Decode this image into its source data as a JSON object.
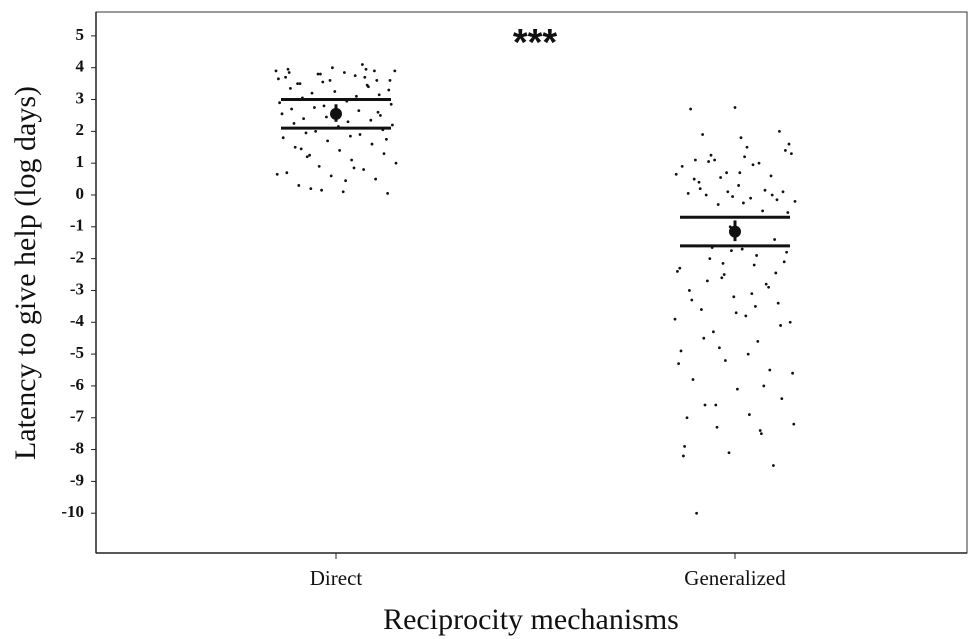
{
  "chart_data": {
    "type": "strip",
    "annotation": "***",
    "xlabel": "Reciprocity mechanisms",
    "ylabel": "Latency to give help (log days)",
    "categories": [
      "Direct",
      "Generalized"
    ],
    "color": "#111111",
    "ylim": [
      -11.25,
      5.75
    ],
    "yticks": [
      -10,
      -9,
      -8,
      -7,
      -6,
      -5,
      -4,
      -3,
      -2,
      -1,
      0,
      1,
      2,
      3,
      4,
      5
    ],
    "points": [
      [
        3.9,
        3.8,
        3.7,
        3.95,
        4.0,
        3.6,
        3.5,
        3.85,
        3.3,
        3.2,
        3.1,
        2.9,
        2.8,
        3.4,
        2.7,
        2.6,
        2.5,
        2.4,
        2.3,
        2.2,
        2.0,
        1.9,
        1.8,
        1.7,
        1.6,
        1.5,
        1.4,
        1.3,
        1.2,
        1.1,
        1.0,
        0.9,
        0.8,
        0.7,
        0.6,
        0.5,
        0.3,
        0.1,
        0.05,
        0.2,
        3.75,
        3.65,
        3.55,
        3.45,
        3.35,
        3.25,
        3.15,
        3.05,
        2.95,
        2.85,
        2.75,
        2.65,
        2.55,
        2.45,
        2.35,
        2.25,
        2.15,
        2.05,
        1.95,
        1.85,
        3.9,
        3.8,
        4.1,
        3.7,
        3.6,
        3.9,
        3.5,
        2.1,
        1.75,
        1.25,
        0.85,
        0.65,
        0.15,
        3.95,
        3.85,
        3.0,
        2.6,
        1.45,
        0.45,
        3.6
      ],
      [
        2.7,
        2.75,
        2.0,
        1.9,
        1.5,
        1.3,
        1.1,
        1.0,
        0.9,
        0.7,
        0.6,
        0.5,
        0.3,
        0.1,
        0.0,
        -0.1,
        -0.2,
        -0.3,
        -0.5,
        -0.7,
        -1.0,
        -1.4,
        -1.6,
        -1.7,
        -1.8,
        -2.0,
        -2.2,
        -2.4,
        -2.6,
        -2.8,
        -3.0,
        -3.2,
        -3.4,
        -3.6,
        -3.8,
        -4.0,
        -4.3,
        -4.6,
        -4.9,
        -5.2,
        -5.5,
        -5.8,
        -6.1,
        -6.4,
        -6.6,
        -6.9,
        -7.2,
        -7.3,
        -7.5,
        -7.9,
        -8.1,
        -8.5,
        -10.0,
        1.8,
        1.4,
        1.05,
        0.95,
        0.65,
        0.55,
        0.15,
        0.05,
        -0.05,
        -0.15,
        0.2,
        1.2,
        1.6,
        -1.65,
        -1.9,
        -2.3,
        -2.5,
        -2.9,
        -3.3,
        -3.7,
        -4.1,
        -4.5,
        -5.0,
        -5.6,
        -6.6,
        -7.4,
        -8.2,
        0.1,
        0.0,
        1.1,
        0.7,
        -2.1,
        -2.7,
        -3.1,
        -3.9,
        -4.8,
        -6.0,
        -7.0,
        -1.75,
        -2.45,
        0.4,
        -0.25,
        -0.55,
        1.25,
        -3.5,
        -5.3,
        -2.15
      ]
    ],
    "means": [
      2.55,
      -1.15
    ],
    "error_low": [
      2.3,
      -1.45
    ],
    "error_high": [
      2.85,
      -0.8
    ],
    "band_high": [
      3.0,
      -0.7
    ],
    "band_low": [
      2.1,
      -1.6
    ]
  }
}
